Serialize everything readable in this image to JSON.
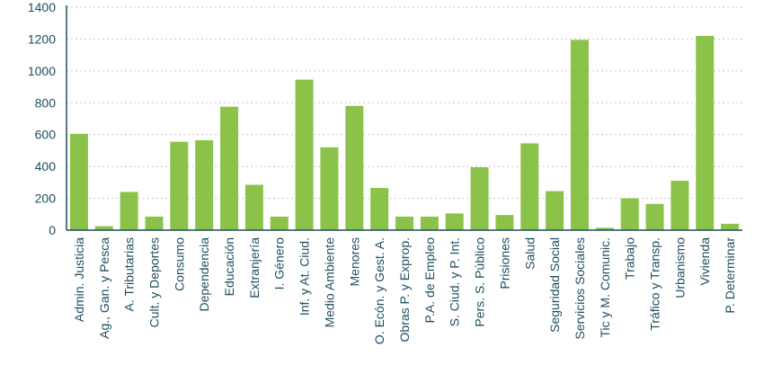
{
  "chart_data": {
    "type": "bar",
    "categories": [
      "Admin. Justicia",
      "Ag., Gan. y Pesca",
      "A. Tributarias",
      "Cult. y Deportes",
      "Consumo",
      "Dependencia",
      "Educación",
      "Extranjería",
      "I. Género",
      "Inf. y At. Ciud.",
      "Medio Ambiente",
      "Menores",
      "O. Ecón. y Gest. A.",
      "Obras P. y Exprop.",
      "P.A. de Empleo",
      "S. Ciud. y P. Int.",
      "Pers. S. Público",
      "Prisiones",
      "Salud",
      "Seguridad Social",
      "Servicios Sociales",
      "Tic y M. Comunic.",
      "Trabajo",
      "Tráfico y Transp.",
      "Urbanismo",
      "Vivienda",
      "P. Determinar"
    ],
    "values": [
      605,
      25,
      240,
      85,
      555,
      565,
      775,
      285,
      85,
      945,
      520,
      780,
      265,
      85,
      85,
      105,
      395,
      95,
      545,
      245,
      1195,
      15,
      200,
      165,
      310,
      1220,
      40
    ],
    "ylim": [
      0,
      1400
    ],
    "yticks": [
      "0",
      "200",
      "400",
      "600",
      "800",
      "1000",
      "1200",
      "1400"
    ],
    "grid": "horizontal dotted",
    "colors": {
      "bar": "#8bc34a",
      "axis": "#1f4e5f",
      "grid": "#c8c8c8",
      "text": "#1f4e5f"
    }
  }
}
